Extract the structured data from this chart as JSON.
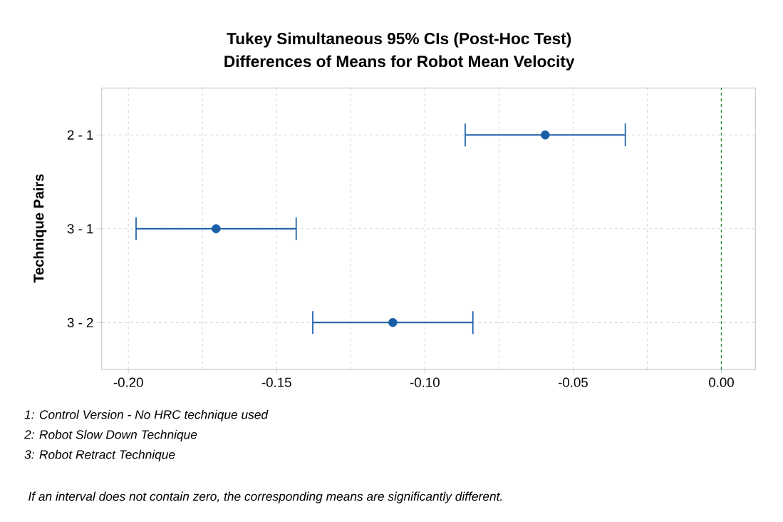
{
  "chart_data": {
    "type": "scatter",
    "orientation": "horizontal",
    "title": "Tukey Simultaneous 95% CIs (Post-Hoc Test)",
    "subtitle": "Differences of Means for Robot Mean Velocity",
    "ylabel": "Technique Pairs",
    "categories": [
      "2 - 1",
      "3 - 1",
      "3 - 2"
    ],
    "values": [
      -0.0594,
      -0.1704,
      -0.1108
    ],
    "errors": [
      0.027,
      0.027,
      0.027
    ],
    "color": "#1a5ea8",
    "marker": "circle",
    "xlim": [
      -0.209,
      0.0115
    ],
    "xticks": [
      {
        "value": -0.2,
        "label": "-0.20"
      },
      {
        "value": -0.175,
        "label": null
      },
      {
        "value": -0.15,
        "label": "-0.15"
      },
      {
        "value": -0.125,
        "label": null
      },
      {
        "value": -0.1,
        "label": "-0.10"
      },
      {
        "value": -0.075,
        "label": null
      },
      {
        "value": -0.05,
        "label": "-0.05"
      },
      {
        "value": -0.025,
        "label": null
      },
      {
        "value": 0.0,
        "label": "0.00"
      }
    ],
    "grid": true,
    "ref_lines": [
      {
        "axis": "x",
        "value": 0.0,
        "color": "#1a8a2a",
        "line_style": "dashed"
      }
    ],
    "annotations": [
      "1: Control Version - No HRC technique used",
      "2: Robot Slow Down Technique",
      "3: Robot Retract Technique",
      "If an interval does not contain zero, the corresponding means are significantly different."
    ]
  }
}
